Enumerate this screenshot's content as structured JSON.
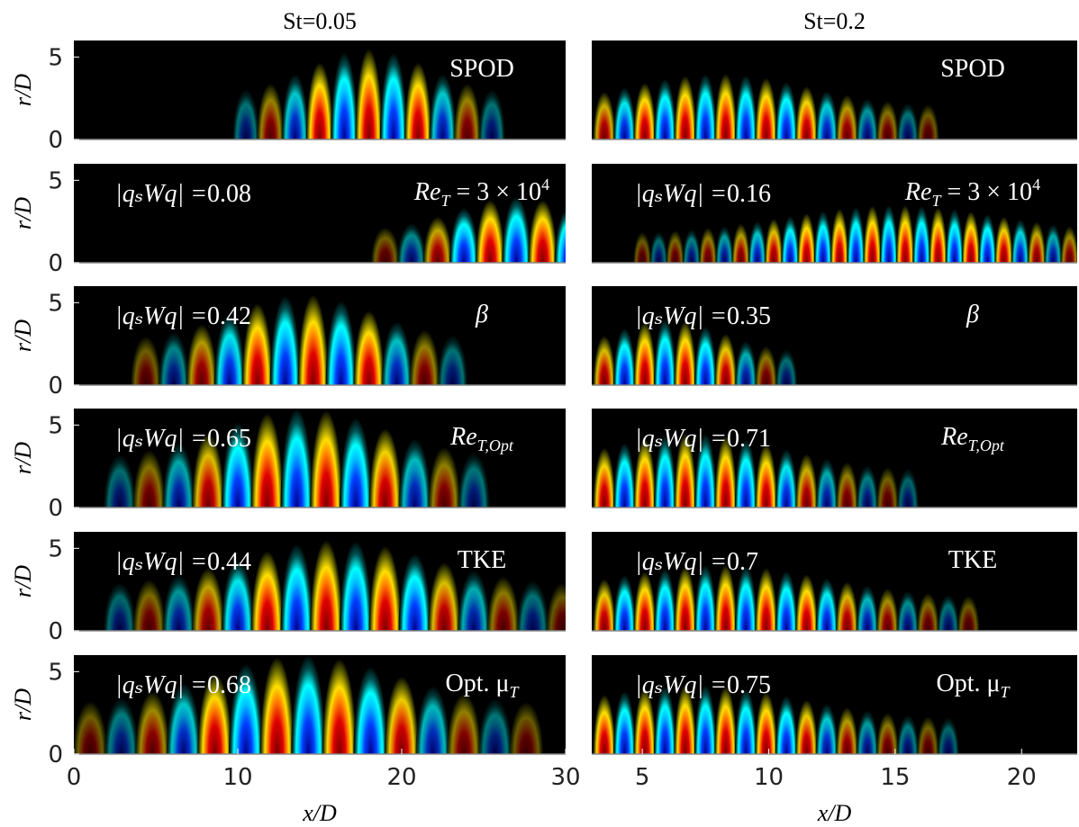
{
  "columns": [
    {
      "title": "St=0.05",
      "xlim": [
        0,
        30
      ],
      "xticks": [
        0,
        10,
        20,
        30
      ]
    },
    {
      "title": "St=0.2",
      "xlim": [
        3,
        22.2
      ],
      "xticks": [
        5,
        10,
        15,
        20
      ]
    }
  ],
  "ylim": [
    0,
    6
  ],
  "yticks": [
    0,
    5
  ],
  "y_label": "r/D",
  "x_label": "x/D",
  "norm_label": "|qₛWq| =",
  "rows": [
    {
      "label": [
        {
          "text": "SPOD"
        }
      ]
    },
    {
      "label": [
        {
          "text": "Re"
        },
        {
          "sub": "T"
        },
        {
          "text": " = 3 × 10"
        },
        {
          "sup": "4"
        }
      ],
      "norms": [
        0.08,
        0.16
      ]
    },
    {
      "label": [
        {
          "text": "β"
        }
      ],
      "norms": [
        0.42,
        0.35
      ]
    },
    {
      "label": [
        {
          "text": "Re"
        },
        {
          "sub": "T,Opt"
        }
      ],
      "norms": [
        0.65,
        0.71
      ]
    },
    {
      "label": [
        {
          "text": "TKE"
        }
      ],
      "norms": [
        0.44,
        0.7
      ]
    },
    {
      "label": [
        {
          "text": "Opt. μ"
        },
        {
          "sub": "T"
        }
      ],
      "norms": [
        0.68,
        0.75
      ]
    }
  ]
}
